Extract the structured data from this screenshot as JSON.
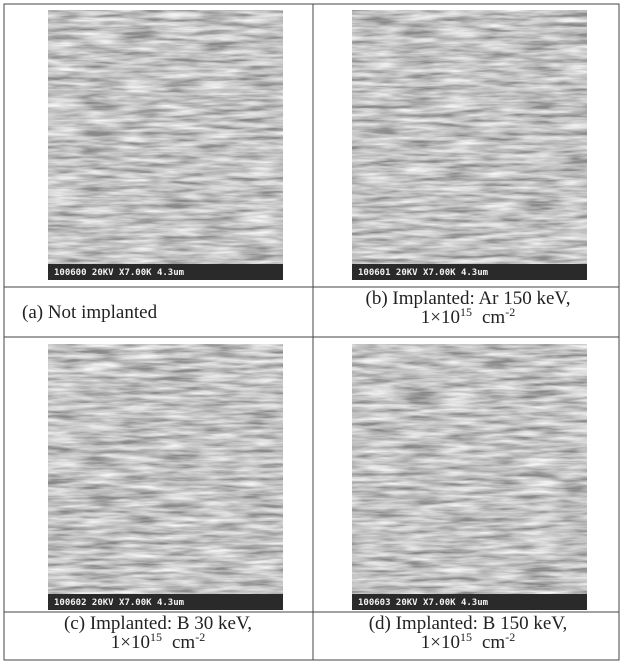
{
  "panels": [
    {
      "micrograph_label": "100600 20KV X7.00K 4.3um",
      "caption": {
        "line1": "(a) Not implanted"
      }
    },
    {
      "micrograph_label": "100601 20KV X7.00K 4.3um",
      "caption": {
        "line1": "(b) Implanted: Ar 150 keV,",
        "line2": {
          "base": "1×10",
          "exponent": "15",
          "unit": "cm",
          "unit_exponent": "-2"
        }
      }
    },
    {
      "micrograph_label": "100602 20KV X7.00K 4.3um",
      "caption": {
        "line1": "(c) Implanted: B 30 keV,",
        "line2": {
          "base": "1×10",
          "exponent": "15",
          "unit": "cm",
          "unit_exponent": "-2"
        }
      }
    },
    {
      "micrograph_label": "100603 20KV X7.00K 4.3um",
      "caption": {
        "line1": "(d) Implanted: B 150 keV,",
        "line2": {
          "base": "1×10",
          "exponent": "15",
          "unit": "cm",
          "unit_exponent": "-2"
        }
      }
    }
  ]
}
